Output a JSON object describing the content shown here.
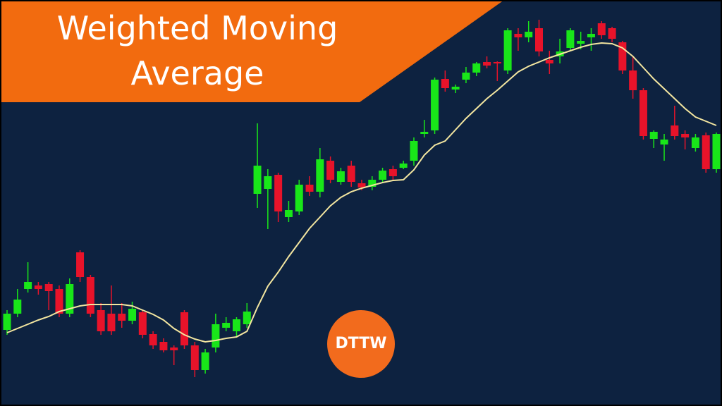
{
  "chart_data": {
    "type": "candlestick",
    "title": "Weighted Moving Average",
    "ylim": [
      0,
      576
    ],
    "up_color": "#19e619",
    "down_color": "#e8132a",
    "open": [
      108,
      131,
      166,
      171,
      173,
      166,
      131,
      218,
      183,
      136,
      131,
      131,
      121,
      133,
      102,
      91,
      83,
      133,
      86,
      51,
      83,
      111,
      106,
      116,
      301,
      308,
      328,
      268,
      276,
      314,
      304,
      348,
      318,
      341,
      316,
      311,
      321,
      336,
      338,
      348,
      386,
      391,
      464,
      449,
      463,
      473,
      488,
      488,
      476,
      528,
      523,
      536,
      491,
      496,
      508,
      514,
      523,
      543,
      536,
      516,
      476,
      448,
      379,
      371,
      398,
      386,
      366,
      384,
      336
    ],
    "high": [
      136,
      166,
      204,
      176,
      176,
      171,
      181,
      221,
      186,
      146,
      171,
      146,
      148,
      136,
      106,
      96,
      86,
      136,
      91,
      81,
      131,
      126,
      126,
      146,
      401,
      336,
      331,
      291,
      321,
      326,
      366,
      354,
      338,
      348,
      321,
      326,
      338,
      341,
      348,
      381,
      406,
      466,
      476,
      456,
      481,
      488,
      496,
      489,
      536,
      536,
      546,
      548,
      504,
      521,
      536,
      531,
      536,
      546,
      538,
      518,
      496,
      451,
      391,
      386,
      426,
      391,
      386,
      388,
      388
    ],
    "low": [
      101,
      126,
      161,
      158,
      136,
      126,
      126,
      176,
      126,
      101,
      101,
      111,
      116,
      96,
      81,
      76,
      58,
      81,
      41,
      46,
      76,
      106,
      98,
      111,
      281,
      251,
      261,
      261,
      271,
      298,
      296,
      316,
      314,
      311,
      306,
      306,
      318,
      321,
      336,
      341,
      381,
      386,
      446,
      444,
      458,
      468,
      479,
      461,
      471,
      504,
      516,
      496,
      471,
      486,
      504,
      506,
      504,
      521,
      516,
      471,
      436,
      378,
      366,
      348,
      378,
      364,
      361,
      331,
      331
    ],
    "close": [
      131,
      151,
      176,
      166,
      163,
      131,
      173,
      183,
      131,
      106,
      106,
      121,
      138,
      101,
      86,
      79,
      79,
      86,
      51,
      76,
      116,
      118,
      123,
      134,
      341,
      326,
      276,
      278,
      314,
      304,
      350,
      321,
      333,
      318,
      310,
      321,
      334,
      326,
      344,
      376,
      389,
      463,
      451,
      453,
      473,
      486,
      483,
      486,
      533,
      523,
      531,
      503,
      486,
      503,
      533,
      518,
      528,
      526,
      521,
      476,
      448,
      383,
      389,
      378,
      383,
      381,
      381,
      336,
      386
    ],
    "line": {
      "color": "#f3e6a0",
      "values": [
        104,
        110,
        116,
        122,
        127,
        134,
        138,
        142,
        144,
        144,
        144,
        144,
        142,
        136,
        130,
        122,
        110,
        101,
        95,
        91,
        93,
        96,
        98,
        106,
        140,
        170,
        190,
        212,
        232,
        252,
        268,
        284,
        296,
        304,
        309,
        313,
        317,
        320,
        321,
        335,
        356,
        370,
        376,
        392,
        408,
        422,
        436,
        448,
        461,
        474,
        482,
        488,
        494,
        499,
        504,
        509,
        513,
        515,
        514,
        508,
        496,
        480,
        464,
        450,
        436,
        422,
        410,
        404,
        398
      ]
    }
  },
  "logo": {
    "text": "DTTW"
  }
}
